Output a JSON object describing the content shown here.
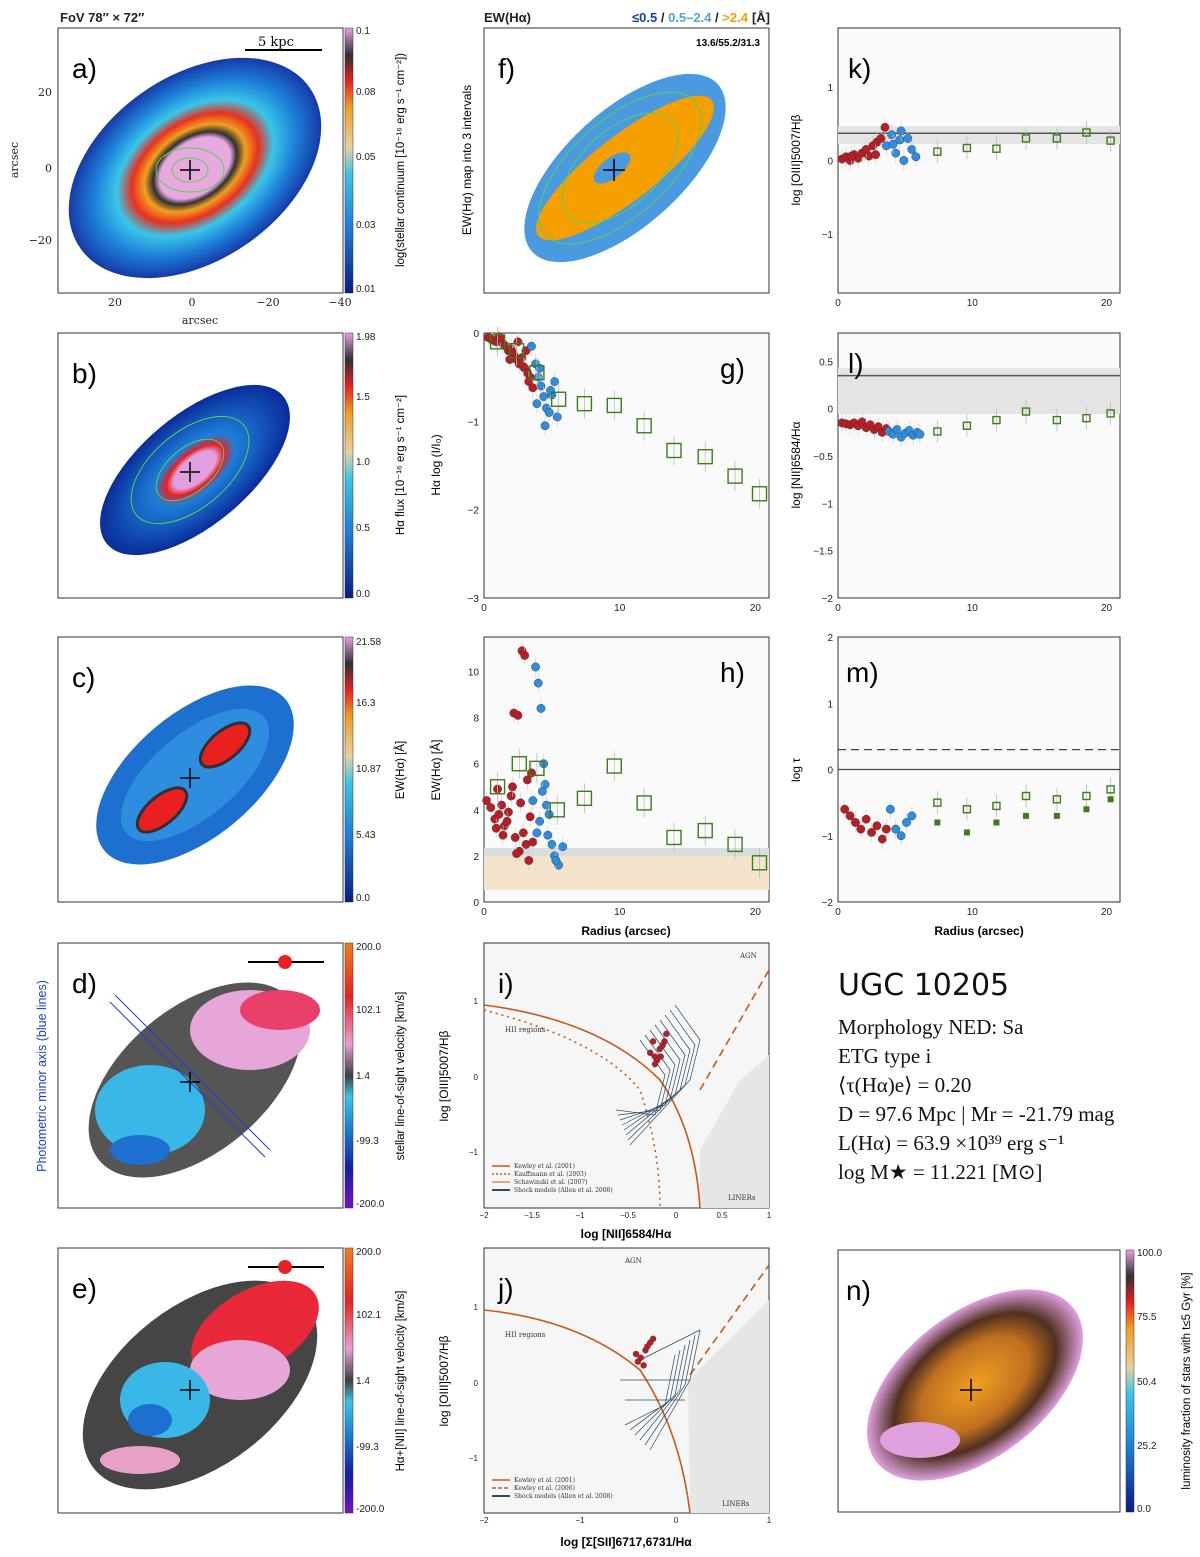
{
  "header": {
    "fov_label": "FoV 78″ × 72″",
    "ew_title": "EW(Hα)",
    "ew_bins": [
      {
        "text": "≤0.5",
        "color": "#1a3fa6"
      },
      {
        "text": "0.5–2.4",
        "color": "#4fa3e0"
      },
      {
        "text": ">2.4",
        "color": "#f5a000"
      }
    ],
    "ew_sep": " / ",
    "ew_unit": "[Å]"
  },
  "info": {
    "galaxy": "UGC 10205",
    "morphology": "Morphology NED: Sa",
    "etg_type": "ETG type i",
    "tau": "⟨τ(Hα)e⟩ = 0.20",
    "distance": "D = 97.6 Mpc | Mr = -21.79 mag",
    "lum": "L(Hα) = 63.9 ×10³⁹ erg s⁻¹",
    "mass": "log M★ = 11.221 [M⊙]"
  },
  "panels": {
    "a": {
      "letter": "a)",
      "scale_label": "5 kpc",
      "xlabel": "arcsec",
      "ylabel": "arcsec",
      "xticks": [
        "20",
        "0",
        "−20",
        "−40"
      ],
      "yticks": [
        "20",
        "0",
        "−20"
      ],
      "cbar_label": "log(stellar continuum [10⁻¹⁶ erg s⁻¹ cm⁻²])",
      "cbar_ticks": [
        "0.1",
        "0.08",
        "0.05",
        "0.03",
        "0.01"
      ]
    },
    "b": {
      "letter": "b)",
      "cbar_label": "Hα flux [10⁻¹⁶ erg s⁻¹ cm⁻²]",
      "cbar_ticks": [
        "1.98",
        "1.5",
        "1.0",
        "0.5",
        "0.0"
      ]
    },
    "c": {
      "letter": "c)",
      "cbar_label": "EW(Hα) [Å]",
      "cbar_ticks": [
        "21.58",
        "16.3",
        "10.87",
        "5.43",
        "0.0"
      ]
    },
    "d": {
      "letter": "d)",
      "side_label": "Photometric minor axis (blue lines)",
      "cbar_label": "stellar line-of-sight velocity [km/s]",
      "cbar_ticks": [
        "200.0",
        "102.1",
        "1.4",
        "-99.3",
        "-200.0"
      ]
    },
    "e": {
      "letter": "e)",
      "cbar_label": "Hα+[NII] line-of-sight velocity [km/s]",
      "cbar_ticks": [
        "200.0",
        "102.1",
        "1.4",
        "-99.3",
        "-200.0"
      ]
    },
    "f": {
      "letter": "f)",
      "ylabel": "EW(Hα) map into 3 intervals",
      "fractions": "13.6/55.2/31.3"
    },
    "g": {
      "letter": "g)",
      "ylabel": "Hα log (I/I₀)"
    },
    "h": {
      "letter": "h)",
      "ylabel": "EW(Hα) [Å]",
      "xlabel": "Radius (arcsec)"
    },
    "i": {
      "letter": "i)",
      "xlabel": "log [NII]6584/Hα",
      "ylabel": "log [OIII]5007/Hβ",
      "agn": "AGN",
      "hii": "HII regions",
      "liner": "LINERs",
      "legend": [
        "Kewley et al. (2001)",
        "Kauffmann et al. (2003)",
        "Schawinski et al. (2007)",
        "Shock models (Allen et al. 2008)"
      ]
    },
    "j": {
      "letter": "j)",
      "xlabel": "log [Σ[SII]6717,6731/Hα",
      "ylabel": "log [OIII]5007/Hβ",
      "agn": "AGN",
      "hii": "HII regions",
      "liner": "LINERs",
      "legend": [
        "Kewley et al. (2001)",
        "Kewley et al. (2006)",
        "Shock models (Allen et al. 2008)"
      ]
    },
    "k": {
      "letter": "k)",
      "ylabel": "log [OIII]5007/Hβ"
    },
    "l": {
      "letter": "l)",
      "ylabel": "log [NII]6584/Hα"
    },
    "m": {
      "letter": "m)",
      "ylabel": "log τ",
      "xlabel": "Radius (arcsec)"
    },
    "n": {
      "letter": "n)",
      "cbar_label": "luminosity fraction of stars with t≤5 Gyr [%]",
      "cbar_ticks": [
        "100.0",
        "75.5",
        "50.4",
        "25.2",
        "0.0"
      ]
    }
  },
  "chart_data": [
    {
      "type": "scatter",
      "panel": "g",
      "xlabel": "",
      "ylabel": "Hα log (I/I₀)",
      "xlim": [
        0,
        21
      ],
      "ylim": [
        -3,
        0
      ],
      "xticks": [
        0,
        10,
        20
      ],
      "yticks": [
        0,
        -1,
        -2,
        -3
      ],
      "series": [
        {
          "name": "red spaxels",
          "color": "#b71f24",
          "x": [
            0.3,
            0.6,
            0.9,
            1.1,
            1.4,
            1.6,
            1.8,
            2.0,
            2.2,
            2.4,
            2.6,
            2.8,
            3.0,
            3.2,
            3.4,
            1.2,
            2.1,
            2.9,
            3.3,
            2.5,
            1.9,
            3.6,
            3.1
          ],
          "y": [
            -0.05,
            -0.08,
            -0.1,
            -0.04,
            -0.12,
            -0.15,
            -0.2,
            -0.18,
            -0.25,
            -0.3,
            -0.35,
            -0.28,
            -0.4,
            -0.45,
            -0.5,
            -0.06,
            -0.22,
            -0.38,
            -0.55,
            -0.1,
            -0.3,
            -0.62,
            -0.2
          ]
        },
        {
          "name": "blue spaxels",
          "color": "#2f8de0",
          "x": [
            3.5,
            3.8,
            4.0,
            4.2,
            4.4,
            4.6,
            4.8,
            5.0,
            5.2,
            5.4,
            4.1,
            4.5,
            3.9,
            4.9
          ],
          "y": [
            -0.15,
            -0.35,
            -0.5,
            -0.6,
            -0.72,
            -0.85,
            -0.9,
            -0.7,
            -0.55,
            -0.95,
            -0.4,
            -1.05,
            -0.8,
            -0.65
          ]
        },
        {
          "name": "annular averages",
          "color": "#3a7d1a",
          "marker": "open-square",
          "x": [
            1.0,
            2.4,
            3.9,
            5.5,
            7.4,
            9.6,
            11.8,
            14.0,
            16.3,
            18.5,
            20.3
          ],
          "y": [
            -0.1,
            -0.2,
            -0.45,
            -0.75,
            -0.8,
            -0.82,
            -1.05,
            -1.33,
            -1.4,
            -1.62,
            -1.82
          ]
        }
      ]
    },
    {
      "type": "scatter",
      "panel": "h",
      "xlabel": "Radius (arcsec)",
      "ylabel": "EW(Hα) [Å]",
      "xlim": [
        0,
        21
      ],
      "ylim": [
        0,
        11.5
      ],
      "xticks": [
        0,
        10,
        20
      ],
      "yticks": [
        0,
        2,
        4,
        6,
        8,
        10
      ],
      "series": [
        {
          "name": "red spaxels",
          "color": "#b71f24",
          "x": [
            0.2,
            0.5,
            0.8,
            1.0,
            1.3,
            1.5,
            1.8,
            2.0,
            2.2,
            2.5,
            2.8,
            3.0,
            3.2,
            3.5,
            2.3,
            2.6,
            2.9,
            3.1,
            1.7,
            2.1,
            3.3,
            0.9,
            1.4,
            2.7,
            3.4,
            3.6,
            1.1,
            2.4
          ],
          "y": [
            4.4,
            4.1,
            3.6,
            4.9,
            4.2,
            3.3,
            3.9,
            4.6,
            8.2,
            8.1,
            10.9,
            10.7,
            5.3,
            5.6,
            2.8,
            2.2,
            3.0,
            2.5,
            3.5,
            5.0,
            1.8,
            3.2,
            2.9,
            4.3,
            3.7,
            2.6,
            3.8,
            2.1
          ]
        },
        {
          "name": "blue spaxels",
          "color": "#2f8de0",
          "x": [
            3.6,
            3.8,
            4.0,
            4.2,
            4.4,
            4.6,
            4.8,
            5.0,
            5.2,
            5.5,
            5.8,
            4.1,
            4.5,
            4.3,
            3.9,
            4.7,
            5.3
          ],
          "y": [
            4.4,
            10.2,
            9.5,
            8.4,
            6.0,
            4.2,
            3.8,
            2.5,
            2.0,
            1.6,
            2.4,
            3.5,
            5.1,
            4.8,
            3.0,
            2.9,
            1.8
          ]
        },
        {
          "name": "annular averages",
          "color": "#3a7d1a",
          "marker": "open-square",
          "x": [
            1.0,
            2.6,
            3.9,
            5.4,
            7.4,
            9.6,
            11.8,
            14.0,
            16.3,
            18.5,
            20.3
          ],
          "y": [
            5.0,
            6.0,
            5.8,
            4.0,
            4.5,
            5.9,
            4.3,
            2.8,
            3.1,
            2.5,
            1.7
          ]
        }
      ]
    },
    {
      "type": "scatter",
      "panel": "k",
      "xlabel": "",
      "ylabel": "log [OIII]5007/Hβ",
      "xlim": [
        0,
        21
      ],
      "ylim": [
        -1.8,
        1.8
      ],
      "xticks": [
        0,
        10,
        20
      ],
      "yticks": [
        1,
        0,
        -1
      ],
      "hline": 0.37,
      "series": [
        {
          "name": "red spaxels",
          "color": "#b71f24",
          "x": [
            0.3,
            0.6,
            0.9,
            1.2,
            1.5,
            1.8,
            2.0,
            2.3,
            2.6,
            2.9,
            3.2,
            3.5,
            1.0,
            2.1,
            2.8
          ],
          "y": [
            0.02,
            0.05,
            0.0,
            0.08,
            0.03,
            0.1,
            0.12,
            0.06,
            0.2,
            0.25,
            0.3,
            0.45,
            0.06,
            0.15,
            0.08
          ]
        },
        {
          "name": "blue spaxels",
          "color": "#2f8de0",
          "x": [
            3.6,
            4.0,
            4.3,
            4.6,
            4.9,
            5.2,
            5.5,
            5.8,
            4.1,
            4.7
          ],
          "y": [
            0.2,
            0.35,
            0.1,
            0.28,
            0.0,
            0.3,
            0.15,
            0.05,
            0.22,
            0.4
          ]
        },
        {
          "name": "annular averages",
          "color": "#3a7d1a",
          "marker": "open-square",
          "x": [
            7.4,
            9.6,
            11.8,
            14.0,
            16.3,
            18.5,
            20.3
          ],
          "y": [
            0.12,
            0.17,
            0.16,
            0.3,
            0.3,
            0.38,
            0.27
          ]
        }
      ]
    },
    {
      "type": "scatter",
      "panel": "l",
      "xlabel": "",
      "ylabel": "log [NII]6584/Hα",
      "xlim": [
        0,
        21
      ],
      "ylim": [
        -2,
        0.8
      ],
      "xticks": [
        0,
        10,
        20
      ],
      "yticks": [
        0.5,
        0,
        -0.5,
        -1,
        -1.5,
        -2
      ],
      "hline": 0.35,
      "series": [
        {
          "name": "red spaxels",
          "color": "#b71f24",
          "x": [
            0.3,
            0.6,
            0.9,
            1.2,
            1.5,
            1.8,
            2.1,
            2.4,
            2.7,
            3.0,
            3.3,
            3.6
          ],
          "y": [
            -0.15,
            -0.16,
            -0.17,
            -0.15,
            -0.18,
            -0.14,
            -0.2,
            -0.17,
            -0.22,
            -0.19,
            -0.25,
            -0.21
          ]
        },
        {
          "name": "blue spaxels",
          "color": "#2f8de0",
          "x": [
            3.8,
            4.1,
            4.4,
            4.7,
            5.0,
            5.3,
            5.6,
            5.9,
            6.1
          ],
          "y": [
            -0.24,
            -0.27,
            -0.22,
            -0.3,
            -0.26,
            -0.23,
            -0.28,
            -0.25,
            -0.27
          ]
        },
        {
          "name": "annular averages",
          "color": "#3a7d1a",
          "marker": "open-square",
          "x": [
            7.4,
            9.6,
            11.8,
            14.0,
            16.3,
            18.5,
            20.3
          ],
          "y": [
            -0.24,
            -0.18,
            -0.12,
            -0.03,
            -0.12,
            -0.1,
            -0.05
          ]
        }
      ]
    },
    {
      "type": "scatter",
      "panel": "m",
      "xlabel": "Radius (arcsec)",
      "ylabel": "log τ",
      "xlim": [
        0,
        21
      ],
      "ylim": [
        -2,
        2
      ],
      "xticks": [
        0,
        10,
        20
      ],
      "yticks": [
        2,
        1,
        0,
        -1,
        -2
      ],
      "hline_solid": 0,
      "hline_dashed": 0.3,
      "series": [
        {
          "name": "red spaxels",
          "color": "#b71f24",
          "x": [
            0.5,
            0.9,
            1.3,
            1.7,
            2.1,
            2.5,
            2.9,
            3.3,
            3.6
          ],
          "y": [
            -0.6,
            -0.7,
            -0.8,
            -0.9,
            -0.75,
            -0.95,
            -0.85,
            -1.05,
            -0.9
          ]
        },
        {
          "name": "blue spaxels",
          "color": "#2f8de0",
          "x": [
            3.9,
            4.3,
            4.7,
            5.1,
            5.5
          ],
          "y": [
            -0.6,
            -0.9,
            -1.0,
            -0.8,
            -0.7
          ]
        },
        {
          "name": "annular open",
          "color": "#3a7d1a",
          "marker": "open-square",
          "x": [
            7.4,
            9.6,
            11.8,
            14.0,
            16.3,
            18.5,
            20.3
          ],
          "y": [
            -0.5,
            -0.6,
            -0.55,
            -0.4,
            -0.45,
            -0.4,
            -0.3
          ]
        },
        {
          "name": "annular filled",
          "color": "#3a7d1a",
          "marker": "filled-square",
          "x": [
            7.4,
            9.6,
            11.8,
            14.0,
            16.3,
            18.5,
            20.3
          ],
          "y": [
            -0.8,
            -0.95,
            -0.8,
            -0.7,
            -0.7,
            -0.6,
            -0.45
          ]
        }
      ]
    },
    {
      "type": "scatter",
      "panel": "i",
      "xlabel": "log [NII]6584/Hα",
      "ylabel": "log [OIII]5007/Hβ",
      "xlim": [
        -2,
        1
      ],
      "ylim": [
        -2,
        1.5
      ],
      "xticks": [
        -2,
        -1.5,
        -1,
        -0.5,
        0,
        0.5,
        1
      ],
      "yticks": [
        1,
        0,
        -1
      ],
      "series": [
        {
          "name": "spaxels",
          "color": "#b71f24",
          "x": [
            -0.2,
            -0.15,
            -0.1,
            -0.25,
            -0.18,
            -0.12,
            -0.08,
            -0.22,
            -0.14,
            -0.2
          ],
          "y": [
            0.0,
            0.1,
            0.2,
            0.05,
            -0.05,
            0.15,
            0.3,
            0.2,
            0.0,
            -0.1
          ]
        }
      ]
    },
    {
      "type": "scatter",
      "panel": "j",
      "xlabel": "log [Σ[SII]6717,6731/Hα",
      "ylabel": "log [OIII]5007/Hβ",
      "xlim": [
        -2,
        1
      ],
      "ylim": [
        -2,
        1.5
      ],
      "xticks": [
        -2,
        -1,
        0,
        1
      ],
      "yticks": [
        1,
        0,
        -1
      ],
      "series": [
        {
          "name": "spaxels",
          "color": "#b71f24",
          "x": [
            -0.35,
            -0.3,
            -0.25,
            -0.4,
            -0.32,
            -0.28,
            -0.22,
            -0.38
          ],
          "y": [
            0.05,
            0.15,
            0.25,
            0.1,
            -0.05,
            0.2,
            0.3,
            0.0
          ]
        }
      ]
    }
  ]
}
